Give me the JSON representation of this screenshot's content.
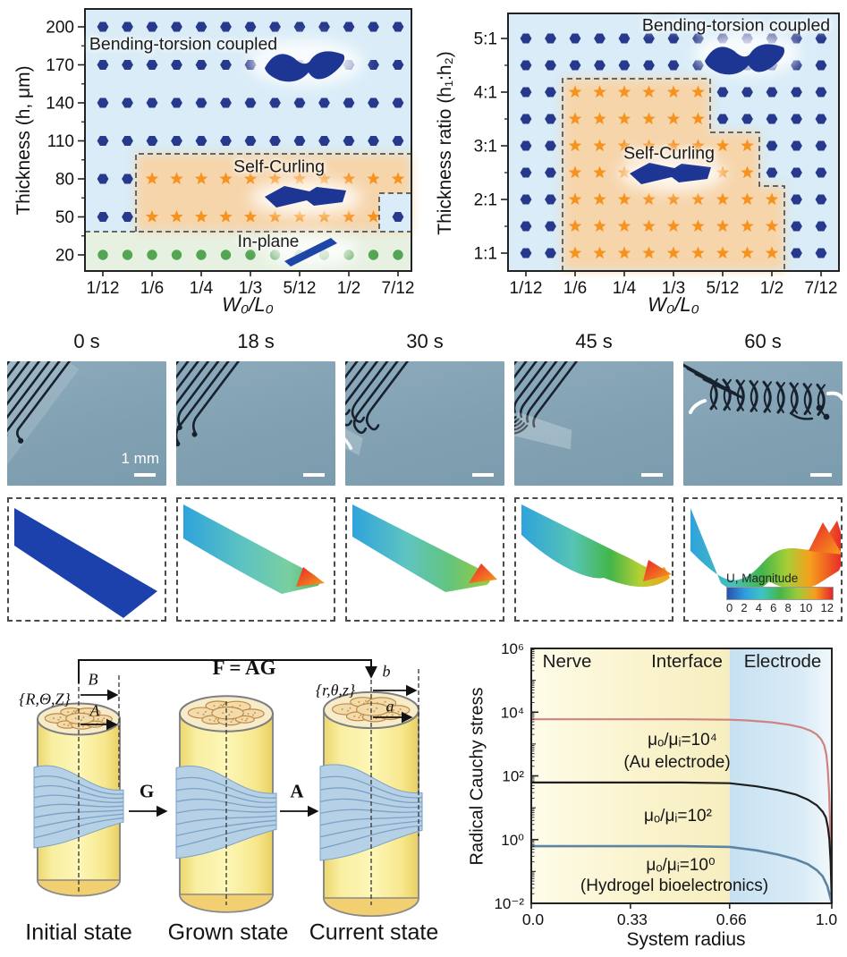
{
  "chart_data": [
    {
      "type": "scatter-phase",
      "title": "",
      "xlabel": "W₀/L₀",
      "ylabel": "Thickness (h, μm)",
      "x_ticks": [
        "1/12",
        "1/6",
        "1/4",
        "1/3",
        "5/12",
        "1/2",
        "7/12"
      ],
      "y_ticks": [
        "200",
        "170",
        "140",
        "110",
        "80",
        "50",
        "20"
      ],
      "regions": [
        {
          "label": "Bending-torsion coupled",
          "marker": "hexagon",
          "color": "#27398c"
        },
        {
          "label": "Self-Curling",
          "marker": "star",
          "color": "#f6921e"
        },
        {
          "label": "In-plane",
          "marker": "circle",
          "color": "#54a551"
        }
      ],
      "marker_key": {
        "H": "hexagon: bending-torsion coupled",
        "S": "star: self-curling",
        "G": "circle: in-plane"
      },
      "grid_rows": [
        {
          "y": "200",
          "markers": "HHHHHHHHHHHHH"
        },
        {
          "y": "170",
          "markers": "HHHHHHHHHHHHH"
        },
        {
          "y": "140",
          "markers": "HHHHHHHHHHHHH"
        },
        {
          "y": "110",
          "markers": "HHHHHHHHHHHHH"
        },
        {
          "y": "80",
          "markers": "HHSSSSSSSSSSS"
        },
        {
          "y": "50",
          "markers": "HHSSSSSSSSSSH"
        },
        {
          "y": "20",
          "markers": "GGGGGGGGGGGGG"
        }
      ]
    },
    {
      "type": "scatter-phase",
      "title": "",
      "xlabel": "W₀/L₀",
      "ylabel": "Thickness ratio (h₁:h₂)",
      "x_ticks": [
        "1/12",
        "1/6",
        "1/4",
        "1/3",
        "5/12",
        "1/2",
        "7/12"
      ],
      "y_ticks": [
        "5:1",
        "4:1",
        "3:1",
        "2:1",
        "1:1"
      ],
      "regions": [
        {
          "label": "Bending-torsion coupled",
          "marker": "hexagon",
          "color": "#27398c"
        },
        {
          "label": "Self-Curling",
          "marker": "star",
          "color": "#f6921e"
        }
      ],
      "marker_key": {
        "H": "hexagon: bending-torsion coupled",
        "S": "star: self-curling"
      },
      "grid_rows": [
        {
          "y": "5:1",
          "markers": "HHHHHHHHHHHHH"
        },
        {
          "y": "4.5:1",
          "markers": "HHHHHHHHHHHHH"
        },
        {
          "y": "4:1",
          "markers": "HHSSSSSSHHHHH"
        },
        {
          "y": "3.5:1",
          "markers": "HHSSSSSSHHHHH"
        },
        {
          "y": "3:1",
          "markers": "HHSSSSSSSSHHH"
        },
        {
          "y": "2.5:1",
          "markers": "HHSSSSSSSSHHH"
        },
        {
          "y": "2:1",
          "markers": "HHSSSSSSSSSHH"
        },
        {
          "y": "1.5:1",
          "markers": "HHSSSSSSSSSHH"
        },
        {
          "y": "1:1",
          "markers": "HHSSSSSSSSSHH"
        }
      ]
    },
    {
      "type": "line",
      "xlabel": "System radius",
      "ylabel": "Radical Cauchy stress",
      "x_ticks": [
        "0.0",
        "0.33",
        "0.66",
        "1.0"
      ],
      "y_ticks": [
        "10⁶",
        "10⁴",
        "10²",
        "10⁰",
        "10⁻²"
      ],
      "xlim": [
        0,
        1
      ],
      "ylim_log10": [
        -2,
        6
      ],
      "grid": false,
      "regions": [
        {
          "label": "Nerve",
          "x_range": [
            0,
            0.33
          ],
          "color": "#fdfae4"
        },
        {
          "label": "Interface",
          "x_range": [
            0.33,
            0.66
          ],
          "color": "#f9f2c8"
        },
        {
          "label": "Electrode",
          "x_range": [
            0.66,
            1.0
          ],
          "color": "#c9e2f2"
        }
      ],
      "series": [
        {
          "label": "μₒ/μᵢ=10⁴",
          "sublabel": "(Au electrode)",
          "color": "#cf8280",
          "points": [
            [
              0,
              6000
            ],
            [
              0.5,
              6000
            ],
            [
              0.66,
              5800
            ],
            [
              0.72,
              5500
            ],
            [
              0.8,
              4800
            ],
            [
              0.86,
              4000
            ],
            [
              0.9,
              3300
            ],
            [
              0.93,
              2600
            ],
            [
              0.95,
              2000
            ],
            [
              0.965,
              1400
            ],
            [
              0.975,
              900
            ],
            [
              0.982,
              450
            ],
            [
              0.987,
              150
            ],
            [
              0.991,
              30
            ],
            [
              0.995,
              2
            ],
            [
              0.998,
              0.15
            ],
            [
              1,
              0.01
            ]
          ]
        },
        {
          "label": "μₒ/μᵢ=10²",
          "sublabel": "",
          "color": "#1d1d1d",
          "points": [
            [
              0,
              62
            ],
            [
              0.5,
              62
            ],
            [
              0.66,
              59
            ],
            [
              0.75,
              47
            ],
            [
              0.82,
              36
            ],
            [
              0.88,
              26
            ],
            [
              0.92,
              18
            ],
            [
              0.95,
              12
            ],
            [
              0.97,
              7.5
            ],
            [
              0.98,
              5
            ],
            [
              0.987,
              2.5
            ],
            [
              0.992,
              1
            ],
            [
              0.996,
              0.2
            ],
            [
              1,
              0.01
            ]
          ]
        },
        {
          "label": "μₒ/μᵢ=10⁰",
          "sublabel": "(Hydrogel bioelectronics)",
          "color": "#5d85a3",
          "points": [
            [
              0,
              0.62
            ],
            [
              0.5,
              0.62
            ],
            [
              0.66,
              0.59
            ],
            [
              0.75,
              0.46
            ],
            [
              0.82,
              0.34
            ],
            [
              0.88,
              0.24
            ],
            [
              0.92,
              0.17
            ],
            [
              0.95,
              0.11
            ],
            [
              0.97,
              0.07
            ],
            [
              0.985,
              0.035
            ],
            [
              1,
              0.01
            ]
          ]
        }
      ]
    }
  ],
  "photo_sequence": {
    "times": [
      "0 s",
      "18 s",
      "30 s",
      "45 s",
      "60 s"
    ],
    "scale_bar_label": "1 mm"
  },
  "simulation": {
    "colorbar": {
      "title": "U, Magnitude",
      "tick_labels": [
        "0",
        "2",
        "4",
        "6",
        "8",
        "10",
        "12"
      ],
      "colors": [
        "#2b4fb0",
        "#2e9fe0",
        "#3fc4c4",
        "#44b649",
        "#9ccb3b",
        "#f6a01c",
        "#e8232a"
      ]
    }
  },
  "growth_diagram": {
    "equation": "F = AG",
    "initial_frame": "{R,Θ,Z}",
    "current_frame": "{r,θ,z}",
    "outer_radius_initial": "B",
    "inner_radius_initial": "A",
    "outer_radius_current": "b",
    "inner_radius_current": "a",
    "growth_tensor": "G",
    "elastic_tensor": "A",
    "captions": [
      "Initial state",
      "Grown state",
      "Current state"
    ]
  }
}
